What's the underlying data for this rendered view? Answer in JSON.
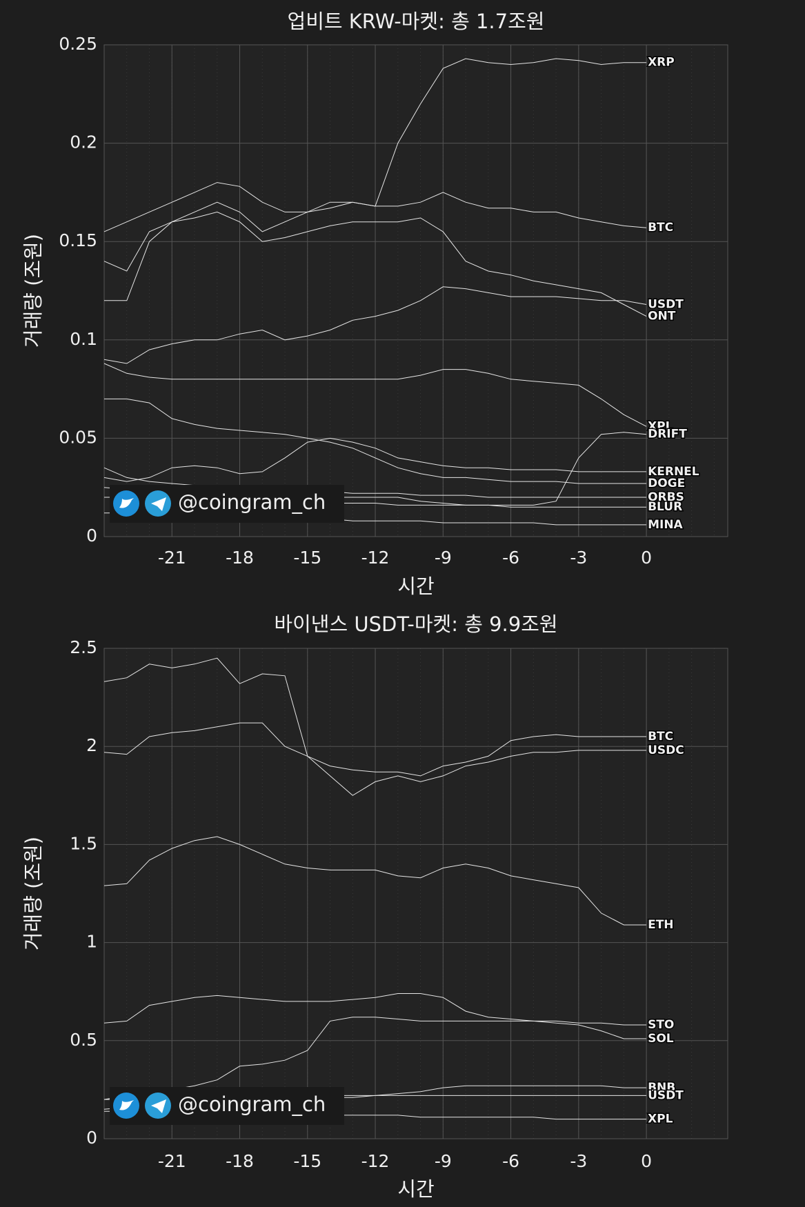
{
  "chart_data": [
    {
      "type": "line",
      "title": "업비트 KRW-마켓: 총 1.7조원",
      "xlabel": "시간",
      "ylabel": "거래량 (조원)",
      "watermark": "@coingram_ch",
      "xlim": [
        -24,
        3.6
      ],
      "xticks": [
        -21,
        -18,
        -15,
        -12,
        -9,
        -6,
        -3,
        0
      ],
      "ylim": [
        0,
        0.25
      ],
      "yticks": [
        0,
        0.05,
        0.1,
        0.15,
        0.2,
        0.25
      ],
      "grid": true,
      "color": "#e6e6e6",
      "x": [
        -24,
        -23,
        -22,
        -21,
        -20,
        -19,
        -18,
        -17,
        -16,
        -15,
        -14,
        -13,
        -12,
        -11,
        -10,
        -9,
        -8,
        -7,
        -6,
        -5,
        -4,
        -3,
        -2,
        -1,
        0
      ],
      "series": [
        {
          "name": "XRP",
          "values": [
            0.12,
            0.12,
            0.15,
            0.16,
            0.165,
            0.17,
            0.165,
            0.155,
            0.16,
            0.165,
            0.17,
            0.17,
            0.168,
            0.2,
            0.22,
            0.238,
            0.243,
            0.241,
            0.24,
            0.241,
            0.243,
            0.242,
            0.24,
            0.241,
            0.241
          ]
        },
        {
          "name": "BTC",
          "values": [
            0.155,
            0.16,
            0.165,
            0.17,
            0.175,
            0.18,
            0.178,
            0.17,
            0.165,
            0.165,
            0.167,
            0.17,
            0.168,
            0.168,
            0.17,
            0.175,
            0.17,
            0.167,
            0.167,
            0.165,
            0.165,
            0.162,
            0.16,
            0.158,
            0.157
          ]
        },
        {
          "name": "USDT",
          "values": [
            0.09,
            0.088,
            0.095,
            0.098,
            0.1,
            0.1,
            0.103,
            0.105,
            0.1,
            0.102,
            0.105,
            0.11,
            0.112,
            0.115,
            0.12,
            0.127,
            0.126,
            0.124,
            0.122,
            0.122,
            0.122,
            0.121,
            0.12,
            0.12,
            0.118
          ]
        },
        {
          "name": "ONT",
          "values": [
            0.14,
            0.135,
            0.155,
            0.16,
            0.162,
            0.165,
            0.16,
            0.15,
            0.152,
            0.155,
            0.158,
            0.16,
            0.16,
            0.16,
            0.162,
            0.155,
            0.14,
            0.135,
            0.133,
            0.13,
            0.128,
            0.126,
            0.124,
            0.118,
            0.112
          ]
        },
        {
          "name": "XPL",
          "values": [
            0.088,
            0.083,
            0.081,
            0.08,
            0.08,
            0.08,
            0.08,
            0.08,
            0.08,
            0.08,
            0.08,
            0.08,
            0.08,
            0.08,
            0.082,
            0.085,
            0.085,
            0.083,
            0.08,
            0.079,
            0.078,
            0.077,
            0.07,
            0.062,
            0.056
          ]
        },
        {
          "name": "DRIFT",
          "values": [
            0.02,
            0.02,
            0.02,
            0.02,
            0.02,
            0.02,
            0.02,
            0.02,
            0.02,
            0.02,
            0.02,
            0.02,
            0.02,
            0.02,
            0.018,
            0.017,
            0.016,
            0.016,
            0.016,
            0.016,
            0.018,
            0.04,
            0.052,
            0.053,
            0.052
          ]
        },
        {
          "name": "KERNEL",
          "values": [
            0.03,
            0.028,
            0.03,
            0.035,
            0.036,
            0.035,
            0.032,
            0.033,
            0.04,
            0.048,
            0.05,
            0.048,
            0.045,
            0.04,
            0.038,
            0.036,
            0.035,
            0.035,
            0.034,
            0.034,
            0.034,
            0.033,
            0.033,
            0.033,
            0.033
          ]
        },
        {
          "name": "DOGE",
          "values": [
            0.07,
            0.07,
            0.068,
            0.06,
            0.057,
            0.055,
            0.054,
            0.053,
            0.052,
            0.05,
            0.048,
            0.045,
            0.04,
            0.035,
            0.032,
            0.03,
            0.03,
            0.029,
            0.028,
            0.028,
            0.028,
            0.027,
            0.027,
            0.027,
            0.027
          ]
        },
        {
          "name": "ORBS",
          "values": [
            0.035,
            0.03,
            0.028,
            0.027,
            0.026,
            0.025,
            0.025,
            0.024,
            0.024,
            0.023,
            0.023,
            0.022,
            0.022,
            0.022,
            0.021,
            0.021,
            0.021,
            0.02,
            0.02,
            0.02,
            0.02,
            0.02,
            0.02,
            0.02,
            0.02
          ]
        },
        {
          "name": "BLUR",
          "values": [
            0.025,
            0.024,
            0.022,
            0.02,
            0.02,
            0.019,
            0.019,
            0.018,
            0.018,
            0.018,
            0.017,
            0.017,
            0.017,
            0.016,
            0.016,
            0.016,
            0.016,
            0.016,
            0.015,
            0.015,
            0.015,
            0.015,
            0.015,
            0.015,
            0.015
          ]
        },
        {
          "name": "MINA",
          "values": [
            0.012,
            0.012,
            0.011,
            0.011,
            0.01,
            0.01,
            0.01,
            0.009,
            0.009,
            0.009,
            0.009,
            0.008,
            0.008,
            0.008,
            0.008,
            0.007,
            0.007,
            0.007,
            0.007,
            0.007,
            0.006,
            0.006,
            0.006,
            0.006,
            0.006
          ]
        }
      ]
    },
    {
      "type": "line",
      "title": "바이낸스 USDT-마켓: 총 9.9조원",
      "xlabel": "시간",
      "ylabel": "거래량 (조원)",
      "watermark": "@coingram_ch",
      "xlim": [
        -24,
        3.6
      ],
      "xticks": [
        -21,
        -18,
        -15,
        -12,
        -9,
        -6,
        -3,
        0
      ],
      "ylim": [
        0,
        2.5
      ],
      "yticks": [
        0,
        0.5,
        1,
        1.5,
        2,
        2.5
      ],
      "grid": true,
      "color": "#e6e6e6",
      "x": [
        -24,
        -23,
        -22,
        -21,
        -20,
        -19,
        -18,
        -17,
        -16,
        -15,
        -14,
        -13,
        -12,
        -11,
        -10,
        -9,
        -8,
        -7,
        -6,
        -5,
        -4,
        -3,
        -2,
        -1,
        0
      ],
      "series": [
        {
          "name": "BTC",
          "values": [
            1.97,
            1.96,
            2.05,
            2.07,
            2.08,
            2.1,
            2.12,
            2.12,
            2.0,
            1.95,
            1.9,
            1.88,
            1.87,
            1.87,
            1.85,
            1.9,
            1.92,
            1.95,
            2.03,
            2.05,
            2.06,
            2.05,
            2.05,
            2.05,
            2.05
          ]
        },
        {
          "name": "USDC",
          "values": [
            2.33,
            2.35,
            2.42,
            2.4,
            2.42,
            2.45,
            2.32,
            2.37,
            2.36,
            1.95,
            1.85,
            1.75,
            1.82,
            1.85,
            1.82,
            1.85,
            1.9,
            1.92,
            1.95,
            1.97,
            1.97,
            1.98,
            1.98,
            1.98,
            1.98
          ]
        },
        {
          "name": "ETH",
          "values": [
            1.29,
            1.3,
            1.42,
            1.48,
            1.52,
            1.54,
            1.5,
            1.45,
            1.4,
            1.38,
            1.37,
            1.37,
            1.37,
            1.34,
            1.33,
            1.38,
            1.4,
            1.38,
            1.34,
            1.32,
            1.3,
            1.28,
            1.15,
            1.09,
            1.09
          ]
        },
        {
          "name": "STO",
          "values": [
            0.59,
            0.6,
            0.68,
            0.7,
            0.72,
            0.73,
            0.72,
            0.71,
            0.7,
            0.7,
            0.7,
            0.71,
            0.72,
            0.74,
            0.74,
            0.72,
            0.65,
            0.62,
            0.61,
            0.6,
            0.6,
            0.59,
            0.59,
            0.58,
            0.58
          ]
        },
        {
          "name": "SOL",
          "values": [
            0.2,
            0.22,
            0.23,
            0.25,
            0.27,
            0.3,
            0.37,
            0.38,
            0.4,
            0.45,
            0.6,
            0.62,
            0.62,
            0.61,
            0.6,
            0.6,
            0.6,
            0.6,
            0.6,
            0.6,
            0.59,
            0.58,
            0.55,
            0.51,
            0.51
          ]
        },
        {
          "name": "BNB",
          "values": [
            0.15,
            0.16,
            0.17,
            0.18,
            0.19,
            0.2,
            0.2,
            0.2,
            0.21,
            0.21,
            0.22,
            0.22,
            0.22,
            0.23,
            0.24,
            0.26,
            0.27,
            0.27,
            0.27,
            0.27,
            0.27,
            0.27,
            0.27,
            0.26,
            0.26
          ]
        },
        {
          "name": "USDT",
          "values": [
            0.2,
            0.2,
            0.2,
            0.2,
            0.2,
            0.21,
            0.21,
            0.21,
            0.21,
            0.21,
            0.21,
            0.21,
            0.22,
            0.22,
            0.22,
            0.22,
            0.22,
            0.22,
            0.22,
            0.22,
            0.22,
            0.22,
            0.22,
            0.22,
            0.22
          ]
        },
        {
          "name": "XPL",
          "values": [
            0.14,
            0.14,
            0.14,
            0.13,
            0.13,
            0.13,
            0.13,
            0.13,
            0.12,
            0.12,
            0.12,
            0.12,
            0.12,
            0.12,
            0.11,
            0.11,
            0.11,
            0.11,
            0.11,
            0.11,
            0.1,
            0.1,
            0.1,
            0.1,
            0.1
          ]
        }
      ]
    }
  ]
}
